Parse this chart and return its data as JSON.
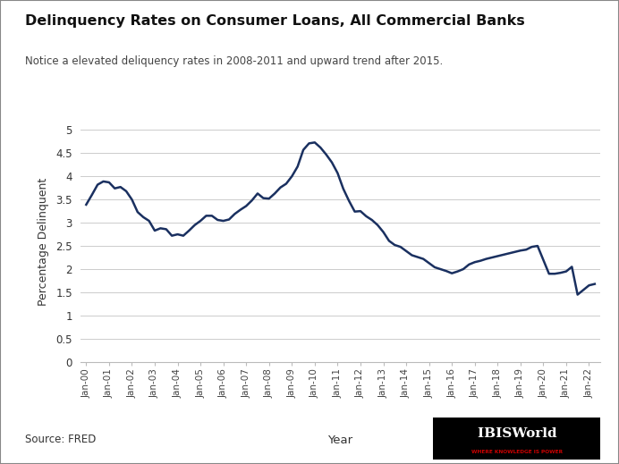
{
  "title": "Delinquency Rates on Consumer Loans, All Commercial Banks",
  "subtitle": "Notice a elevated deliquency rates in 2008-2011 and upward trend after 2015.",
  "xlabel": "Year",
  "ylabel": "Percentage Delinquent",
  "source": "Source: FRED",
  "line_color": "#1a3060",
  "line_width": 1.8,
  "background_color": "#ffffff",
  "outer_border_color": "#aaaaaa",
  "ylim": [
    0,
    5.2
  ],
  "yticks": [
    0,
    0.5,
    1,
    1.5,
    2,
    2.5,
    3,
    3.5,
    4,
    4.5,
    5
  ],
  "xtick_labels": [
    "Jan-00",
    "Jan-01",
    "Jan-02",
    "Jan-03",
    "Jan-04",
    "Jan-05",
    "Jan-06",
    "Jan-07",
    "Jan-08",
    "Jan-09",
    "Jan-10",
    "Jan-11",
    "Jan-12",
    "Jan-13",
    "Jan-14",
    "Jan-15",
    "Jan-16",
    "Jan-17",
    "Jan-18",
    "Jan-19",
    "Jan-20",
    "Jan-21",
    "Jan-22"
  ],
  "actual_data": [
    3.39,
    3.6,
    3.82,
    3.89,
    3.87,
    3.74,
    3.77,
    3.68,
    3.5,
    3.23,
    3.12,
    3.04,
    2.83,
    2.88,
    2.86,
    2.72,
    2.75,
    2.72,
    2.83,
    2.95,
    3.04,
    3.15,
    3.15,
    3.06,
    3.04,
    3.07,
    3.19,
    3.28,
    3.36,
    3.48,
    3.63,
    3.53,
    3.52,
    3.63,
    3.76,
    3.84,
    4.0,
    4.21,
    4.57,
    4.71,
    4.73,
    4.62,
    4.47,
    4.3,
    4.07,
    3.73,
    3.47,
    3.24,
    3.25,
    3.14,
    3.06,
    2.95,
    2.8,
    2.61,
    2.52,
    2.48,
    2.39,
    2.3,
    2.26,
    2.22,
    2.13,
    2.04,
    2.0,
    1.96,
    1.91,
    1.95,
    2.0,
    2.1,
    2.15,
    2.18,
    2.22,
    2.25,
    2.28,
    2.31,
    2.34,
    2.37,
    2.4,
    2.42,
    2.48,
    2.5,
    2.2,
    1.9,
    1.9,
    1.92,
    1.95,
    2.05,
    1.45,
    1.55,
    1.65,
    1.68
  ]
}
